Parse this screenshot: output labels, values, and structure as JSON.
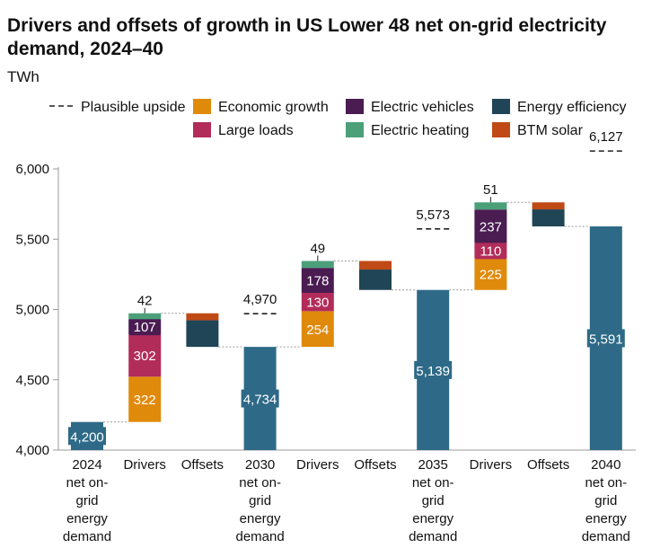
{
  "chart_data": {
    "type": "waterfall",
    "title": "Drivers and offsets of growth in US Lower 48 net on-grid electricity demand, 2024–40",
    "unit_label": "TWh",
    "ylim": [
      4000,
      6000
    ],
    "yticks": [
      4000,
      4500,
      5000,
      5500,
      6000
    ],
    "ytick_labels": [
      "4,000",
      "4,500",
      "5,000",
      "5,500",
      "6,000"
    ],
    "legend": [
      {
        "key": "upside",
        "name": "Plausible upside",
        "style": "dashed",
        "color": "#222222"
      },
      {
        "key": "econ",
        "name": "Economic growth",
        "color": "#E08A0B"
      },
      {
        "key": "ev",
        "name": "Electric vehicles",
        "color": "#4A1C52"
      },
      {
        "key": "ee",
        "name": "Energy efficiency",
        "color": "#1F4556"
      },
      {
        "key": "large",
        "name": "Large loads",
        "color": "#B22C5A"
      },
      {
        "key": "heat",
        "name": "Electric heating",
        "color": "#4BA07A"
      },
      {
        "key": "btm",
        "name": "BTM solar",
        "color": "#C04A16"
      }
    ],
    "total_color": "#2E6A87",
    "categories": [
      {
        "label": [
          "2024",
          "net on-",
          "grid",
          "energy",
          "demand"
        ],
        "kind": "total",
        "value": 4200,
        "value_label": "4,200"
      },
      {
        "label": [
          "Drivers"
        ],
        "kind": "drivers",
        "base": 4200,
        "segments": [
          {
            "key": "econ",
            "value": 322,
            "label": "322"
          },
          {
            "key": "large",
            "value": 302,
            "label": "302"
          },
          {
            "key": "ev",
            "value": 107,
            "label": "107"
          },
          {
            "key": "heat",
            "value": 42,
            "label": "42"
          }
        ]
      },
      {
        "label": [
          "Offsets"
        ],
        "kind": "offsets",
        "top": 4973,
        "segments": [
          {
            "key": "btm",
            "value": 50
          },
          {
            "key": "ee",
            "value": 189
          }
        ]
      },
      {
        "label": [
          "2030",
          "net on-",
          "grid",
          "energy",
          "demand"
        ],
        "kind": "total",
        "value": 4734,
        "value_label": "4,734",
        "upside": 4970,
        "upside_label": "4,970"
      },
      {
        "label": [
          "Drivers"
        ],
        "kind": "drivers",
        "base": 4734,
        "segments": [
          {
            "key": "econ",
            "value": 254,
            "label": "254"
          },
          {
            "key": "large",
            "value": 130,
            "label": "130"
          },
          {
            "key": "ev",
            "value": 178,
            "label": "178"
          },
          {
            "key": "heat",
            "value": 49,
            "label": "49"
          }
        ]
      },
      {
        "label": [
          "Offsets"
        ],
        "kind": "offsets",
        "top": 5345,
        "segments": [
          {
            "key": "btm",
            "value": 61
          },
          {
            "key": "ee",
            "value": 145
          }
        ]
      },
      {
        "label": [
          "2035",
          "net on-",
          "grid",
          "energy",
          "demand"
        ],
        "kind": "total",
        "value": 5139,
        "value_label": "5,139",
        "upside": 5573,
        "upside_label": "5,573"
      },
      {
        "label": [
          "Drivers"
        ],
        "kind": "drivers",
        "base": 5139,
        "segments": [
          {
            "key": "econ",
            "value": 225,
            "label": "225"
          },
          {
            "key": "large",
            "value": 110,
            "label": "110"
          },
          {
            "key": "ev",
            "value": 237,
            "label": "237"
          },
          {
            "key": "heat",
            "value": 51,
            "label": "51"
          }
        ]
      },
      {
        "label": [
          "Offsets"
        ],
        "kind": "offsets",
        "top": 5762,
        "segments": [
          {
            "key": "btm",
            "value": 50
          },
          {
            "key": "ee",
            "value": 121
          }
        ]
      },
      {
        "label": [
          "2040",
          "net on-",
          "grid",
          "energy",
          "demand"
        ],
        "kind": "total",
        "value": 5591,
        "value_label": "5,591",
        "upside": 6127,
        "upside_label": "6,127"
      }
    ]
  }
}
